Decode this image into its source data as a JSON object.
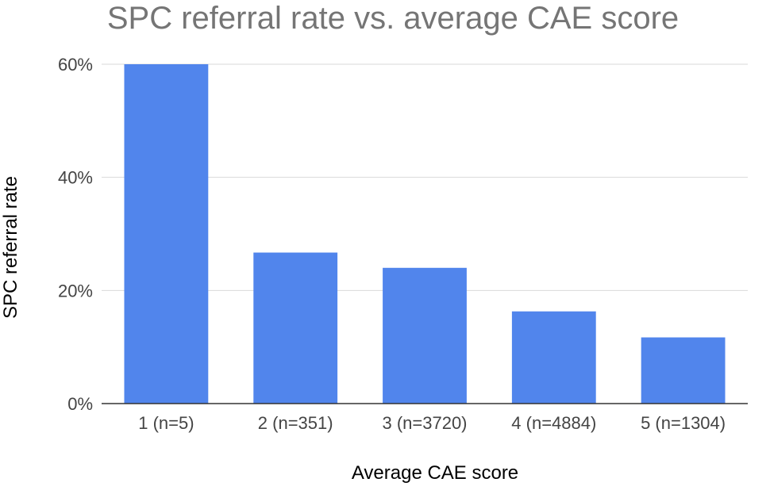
{
  "chart_data": {
    "type": "bar",
    "title": "SPC referral rate vs. average CAE score",
    "xlabel": "Average CAE score",
    "ylabel": "SPC referral rate",
    "categories": [
      "1 (n=5)",
      "2 (n=351)",
      "3 (n=3720)",
      "4 (n=4884)",
      "5 (n=1304)"
    ],
    "values": [
      0.6,
      0.267,
      0.24,
      0.163,
      0.117
    ],
    "ylim": [
      0,
      0.6
    ],
    "yticks": [
      0,
      0.2,
      0.4,
      0.6
    ],
    "ytick_labels": [
      "0%",
      "20%",
      "40%",
      "60%"
    ],
    "grid": true,
    "legend": "none",
    "colors": {
      "bar": "#5185ec",
      "grid": "#d9d9d9",
      "axis": "#333333",
      "title": "#757575",
      "tick_label": "#444444",
      "axis_label": "#000000"
    }
  }
}
